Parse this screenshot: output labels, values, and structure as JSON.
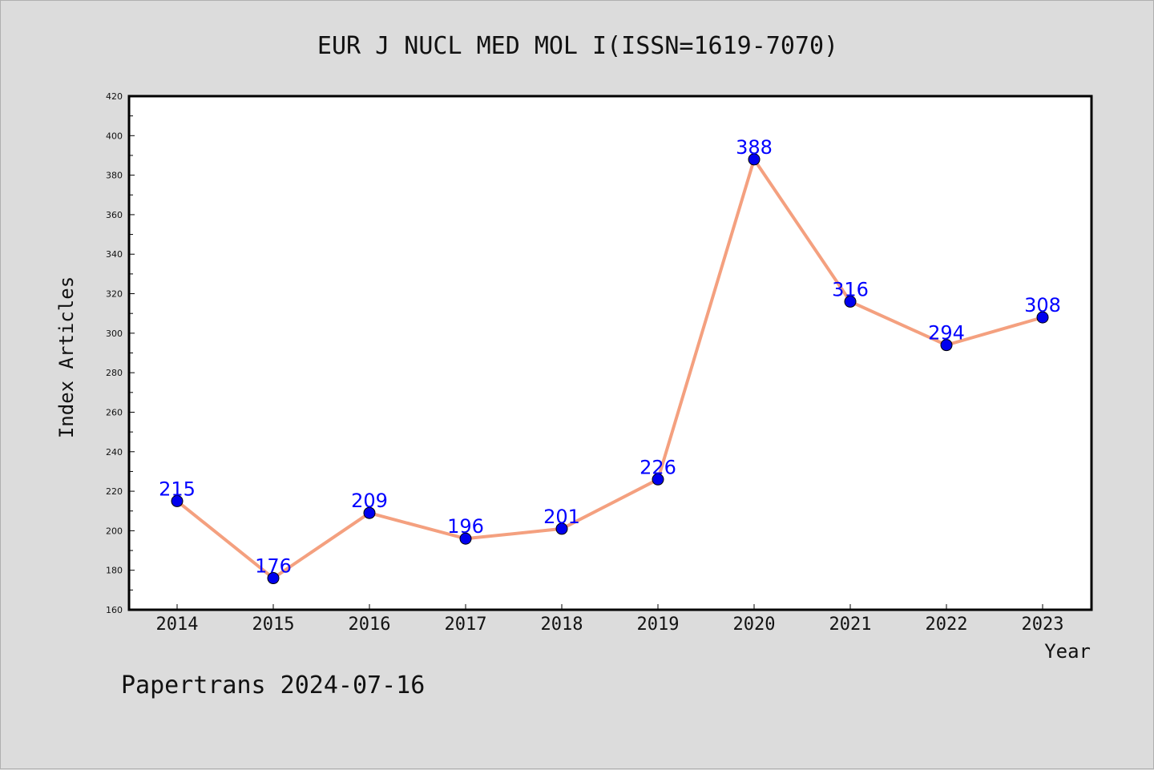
{
  "chart_data": {
    "type": "line",
    "title": "EUR J NUCL MED MOL I(ISSN=1619-7070)",
    "xlabel": "Year",
    "ylabel": "Index Articles",
    "categories": [
      "2014",
      "2015",
      "2016",
      "2017",
      "2018",
      "2019",
      "2020",
      "2021",
      "2022",
      "2023"
    ],
    "series": [
      {
        "values": [
          215,
          176,
          209,
          196,
          201,
          226,
          388,
          316,
          294,
          308
        ],
        "line_color": "#f4a07f",
        "marker_color": "#0000ee"
      }
    ],
    "ylim": [
      160,
      420
    ],
    "yticks": [
      "160",
      "180",
      "200",
      "220",
      "240",
      "260",
      "280",
      "300",
      "320",
      "340",
      "360",
      "380",
      "400",
      "420"
    ],
    "data_labels": [
      "215",
      "176",
      "209",
      "196",
      "201",
      "226",
      "388",
      "316",
      "294",
      "308"
    ],
    "grid": false,
    "label_color": "#0000ff"
  },
  "footer": "Papertrans 2024-07-16"
}
